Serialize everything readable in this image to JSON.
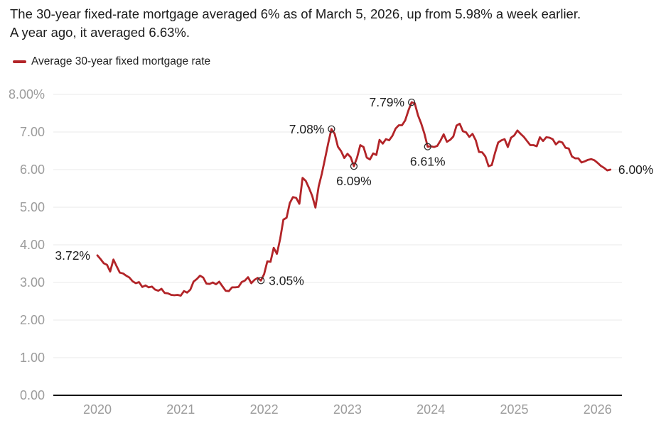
{
  "title": {
    "lines": [
      "The 30-year fixed-rate mortgage averaged 6% as of March 5, 2026, up from 5.98% a week earlier.",
      "A year ago, it averaged 6.63%."
    ]
  },
  "legend": {
    "label": "Average 30-year fixed mortgage rate"
  },
  "colors": {
    "line": "#b22428",
    "grid": "#e8e8e8",
    "baseline": "#141414",
    "axis_label": "#9c9c9c",
    "annotation": "#1e1e1e",
    "marker_stroke": "#2f2f2f"
  },
  "chart_data": {
    "type": "line",
    "series_name": "Average 30-year fixed mortgage rate",
    "x_unit": "year (weekly observations, biweekly sampled)",
    "y_unit": "percent",
    "x_start": 2020.0,
    "x_step": 0.0384615,
    "xlim": [
      2019.47,
      2026.29
    ],
    "ylim": [
      0,
      8
    ],
    "grid": true,
    "legend_position": "top-left",
    "values": [
      3.72,
      3.62,
      3.51,
      3.47,
      3.29,
      3.61,
      3.43,
      3.26,
      3.24,
      3.18,
      3.13,
      3.03,
      2.98,
      3.01,
      2.88,
      2.92,
      2.87,
      2.89,
      2.81,
      2.78,
      2.83,
      2.72,
      2.71,
      2.67,
      2.66,
      2.67,
      2.65,
      2.77,
      2.73,
      2.81,
      3.02,
      3.09,
      3.18,
      3.13,
      2.97,
      2.96,
      3.0,
      2.95,
      3.02,
      2.9,
      2.78,
      2.77,
      2.87,
      2.87,
      2.88,
      3.01,
      3.05,
      3.14,
      2.98,
      3.07,
      3.12,
      3.05,
      3.22,
      3.56,
      3.55,
      3.92,
      3.76,
      4.16,
      4.67,
      4.72,
      5.11,
      5.27,
      5.25,
      5.09,
      5.78,
      5.7,
      5.51,
      5.3,
      4.99,
      5.55,
      5.89,
      6.29,
      6.7,
      7.08,
      6.95,
      6.61,
      6.49,
      6.31,
      6.42,
      6.33,
      6.09,
      6.32,
      6.65,
      6.6,
      6.32,
      6.27,
      6.43,
      6.39,
      6.79,
      6.69,
      6.81,
      6.78,
      6.9,
      7.09,
      7.18,
      7.18,
      7.31,
      7.57,
      7.79,
      7.76,
      7.44,
      7.22,
      6.95,
      6.61,
      6.62,
      6.6,
      6.63,
      6.77,
      6.94,
      6.74,
      6.79,
      6.88,
      7.17,
      7.22,
      7.02,
      6.99,
      6.87,
      6.95,
      6.78,
      6.47,
      6.46,
      6.35,
      6.09,
      6.12,
      6.44,
      6.72,
      6.78,
      6.81,
      6.6,
      6.85,
      6.91,
      7.04,
      6.95,
      6.87,
      6.76,
      6.65,
      6.65,
      6.62,
      6.86,
      6.76,
      6.86,
      6.85,
      6.81,
      6.67,
      6.75,
      6.72,
      6.58,
      6.56,
      6.35,
      6.3,
      6.3,
      6.19,
      6.22,
      6.26,
      6.28,
      6.25,
      6.18,
      6.1,
      6.05,
      5.98,
      6.0
    ],
    "y_ticks": [
      {
        "value": 8,
        "label": "8.00%"
      },
      {
        "value": 7,
        "label": "7.00"
      },
      {
        "value": 6,
        "label": "6.00"
      },
      {
        "value": 5,
        "label": "5.00"
      },
      {
        "value": 4,
        "label": "4.00"
      },
      {
        "value": 3,
        "label": "3.00"
      },
      {
        "value": 2,
        "label": "2.00"
      },
      {
        "value": 1,
        "label": "1.00"
      },
      {
        "value": 0,
        "label": "0.00"
      }
    ],
    "x_ticks": [
      {
        "value": 2020,
        "label": "2020"
      },
      {
        "value": 2021,
        "label": "2021"
      },
      {
        "value": 2022,
        "label": "2022"
      },
      {
        "value": 2023,
        "label": "2023"
      },
      {
        "value": 2024,
        "label": "2024"
      },
      {
        "value": 2025,
        "label": "2025"
      },
      {
        "value": 2026,
        "label": "2026"
      }
    ],
    "annotations": [
      {
        "x": 2020.0,
        "y": 3.72,
        "label": "3.72%",
        "placement": "left",
        "marker": false
      },
      {
        "x": 2021.962,
        "y": 3.05,
        "label": "3.05%",
        "placement": "right",
        "marker": true
      },
      {
        "x": 2022.808,
        "y": 7.08,
        "label": "7.08%",
        "placement": "left",
        "marker": true
      },
      {
        "x": 2023.077,
        "y": 6.09,
        "label": "6.09%",
        "placement": "below",
        "marker": true
      },
      {
        "x": 2023.769,
        "y": 7.79,
        "label": "7.79%",
        "placement": "left",
        "marker": true
      },
      {
        "x": 2023.962,
        "y": 6.61,
        "label": "6.61%",
        "placement": "below",
        "marker": true
      },
      {
        "x": 2026.154,
        "y": 6.0,
        "label": "6.00%",
        "placement": "right",
        "marker": false
      }
    ]
  }
}
